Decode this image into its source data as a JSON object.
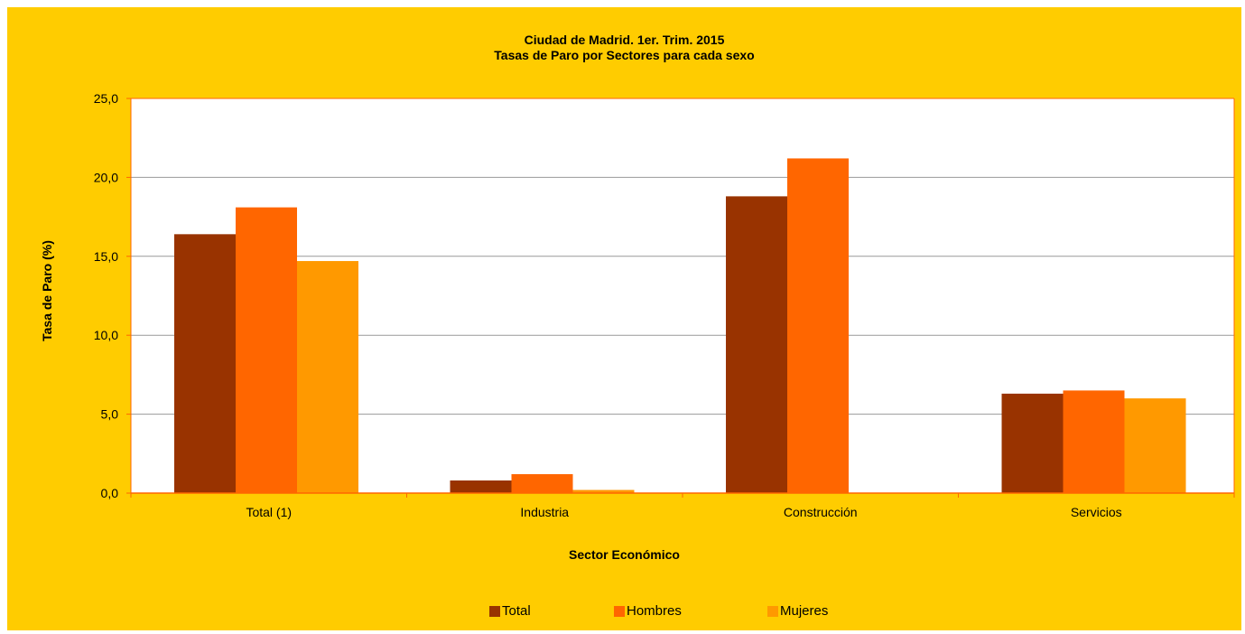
{
  "colors": {
    "background": "#ffcc00",
    "plot_background": "#ffffff",
    "axis": "#ff6600",
    "grid": "#999999"
  },
  "chart_data": {
    "type": "bar",
    "title": "Ciudad de Madrid. 1er. Trim. 2015",
    "subtitle": "Tasas de Paro por Sectores para cada sexo",
    "xlabel": "Sector Económico",
    "ylabel": "Tasa de Paro (%)",
    "categories": [
      "Total (1)",
      "Industria",
      "Construcción",
      "Servicios"
    ],
    "ylim": [
      0,
      25
    ],
    "yticks": [
      0,
      5,
      10,
      15,
      20,
      25
    ],
    "ytick_labels": [
      "0,0",
      "5,0",
      "10,0",
      "15,0",
      "20,0",
      "25,0"
    ],
    "grid": true,
    "legend_position": "bottom",
    "series": [
      {
        "name": "Total",
        "color": "#993300",
        "values": [
          16.4,
          0.8,
          18.8,
          6.3
        ]
      },
      {
        "name": "Hombres",
        "color": "#ff6600",
        "values": [
          18.1,
          1.2,
          21.2,
          6.5
        ]
      },
      {
        "name": "Mujeres",
        "color": "#ff9900",
        "values": [
          14.7,
          0.2,
          0.0,
          6.0
        ]
      }
    ]
  }
}
